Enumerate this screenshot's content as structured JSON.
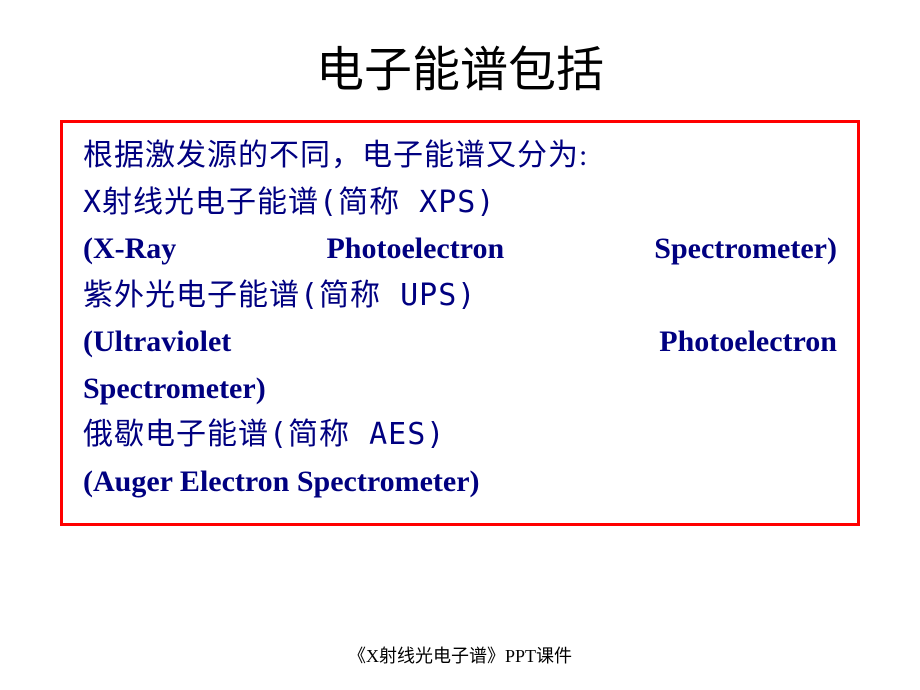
{
  "slide": {
    "title": "电子能谱包括",
    "intro": "根据激发源的不同，电子能谱又分为:",
    "items": [
      {
        "cn": "X射线光电子能谱(简称 XPS)",
        "en": "(X-Ray Photoelectron Spectrometer)"
      },
      {
        "cn": "紫外光电子能谱(简称 UPS)",
        "en_part1": "(Ultraviolet",
        "en_part2": "Photoelectron",
        "en_part3": "Spectrometer)"
      },
      {
        "cn": "俄歇电子能谱(简称 AES)",
        "en": "(Auger Electron Spectrometer)"
      }
    ],
    "footer": "《X射线光电子谱》PPT课件"
  },
  "colors": {
    "title": "#000000",
    "body_text": "#000080",
    "box_border": "#ff0000",
    "background": "#ffffff"
  },
  "typography": {
    "title_fontsize": 48,
    "body_fontsize": 30,
    "footer_fontsize": 18
  }
}
